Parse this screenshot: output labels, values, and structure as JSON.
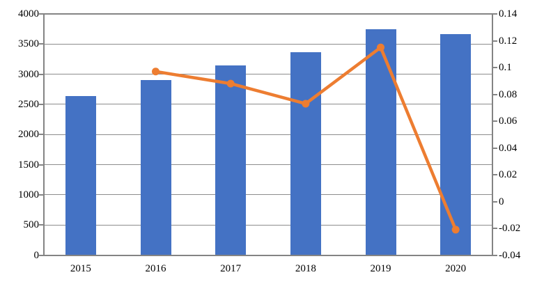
{
  "chart_data": {
    "type": "bar+line",
    "title": "",
    "legend": "none",
    "grid": "horizontal, at left-axis intervals",
    "categories": [
      "2015",
      "2016",
      "2017",
      "2018",
      "2019",
      "2020"
    ],
    "series": [
      {
        "name": "market-size-bars",
        "type": "bar",
        "axis": "left",
        "color": "#4472C4",
        "values": [
          2640,
          2905,
          3140,
          3360,
          3750,
          3665
        ]
      },
      {
        "name": "growth-rate-line",
        "type": "line",
        "axis": "right",
        "color": "#ED7D31",
        "values": [
          null,
          0.097,
          0.088,
          0.073,
          0.115,
          -0.021
        ]
      }
    ],
    "left_axis": {
      "min": 0,
      "max": 4000,
      "step": 500,
      "tick_labels": [
        "0",
        "500",
        "1000",
        "1500",
        "2000",
        "2500",
        "3000",
        "3500",
        "4000"
      ]
    },
    "right_axis": {
      "min": -0.04,
      "max": 0.14,
      "step": 0.02,
      "tick_labels": [
        "-0.04",
        "-0.02",
        "0",
        "0.02",
        "0.04",
        "0.06",
        "0.08",
        "0.1",
        "0.12",
        "0.14"
      ]
    },
    "colors": {
      "gridline": "#8C8C8C",
      "axis_border": "#848484",
      "tick": "#848484",
      "text": "#000000",
      "background": "#FFFFFF"
    }
  }
}
